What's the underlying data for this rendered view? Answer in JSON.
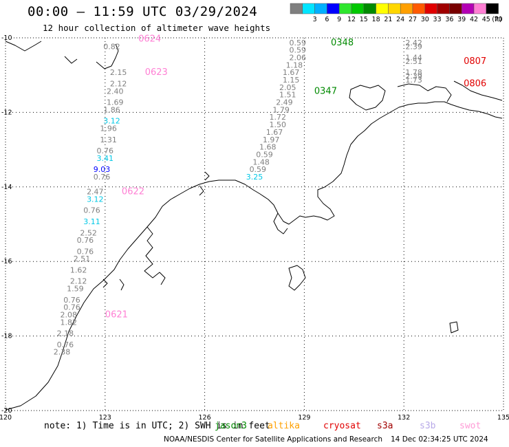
{
  "header": {
    "title": "00:00 – 11:59 UTC 03/29/2024",
    "subtitle": "12 hour collection of altimeter wave heights"
  },
  "legend": {
    "unit": "(ft)",
    "swatches": [
      {
        "label": "",
        "color": "#7f7f7f"
      },
      {
        "label": "3",
        "color": "#00e5ff"
      },
      {
        "label": "6",
        "color": "#00b0ff"
      },
      {
        "label": "9",
        "color": "#0000ff"
      },
      {
        "label": "12",
        "color": "#2ee62e"
      },
      {
        "label": "15",
        "color": "#00c800"
      },
      {
        "label": "18",
        "color": "#008a00"
      },
      {
        "label": "21",
        "color": "#ffff00"
      },
      {
        "label": "24",
        "color": "#ffd700"
      },
      {
        "label": "27",
        "color": "#ffa000"
      },
      {
        "label": "30",
        "color": "#ff5a00"
      },
      {
        "label": "33",
        "color": "#e10000"
      },
      {
        "label": "36",
        "color": "#a00000"
      },
      {
        "label": "39",
        "color": "#780000"
      },
      {
        "label": "42",
        "color": "#b400b4"
      },
      {
        "label": "45",
        "color": "#ff7fd4"
      },
      {
        "label": "70",
        "color": "#000000"
      }
    ]
  },
  "axes": {
    "lon_labels": [
      "120",
      "123",
      "126",
      "129",
      "132",
      "135"
    ],
    "lat_labels": [
      "-10",
      "-12",
      "-14",
      "-16",
      "-18",
      "-20"
    ]
  },
  "passes": [
    {
      "time": "0624",
      "color": "#ff7fd4",
      "lon": 124.0,
      "lat": -10.1
    },
    {
      "time": "0623",
      "color": "#ff7fd4",
      "lon": 124.2,
      "lat": -11.0
    },
    {
      "time": "0622",
      "color": "#ff7fd4",
      "lon": 123.5,
      "lat": -14.2
    },
    {
      "time": "0621",
      "color": "#ff7fd4",
      "lon": 123.0,
      "lat": -17.5
    },
    {
      "time": "0348",
      "color": "#008a00",
      "lon": 129.8,
      "lat": -10.2
    },
    {
      "time": "0347",
      "color": "#008a00",
      "lon": 129.3,
      "lat": -11.5
    },
    {
      "time": "0807",
      "color": "#e10000",
      "lon": 133.8,
      "lat": -10.7
    },
    {
      "time": "0806",
      "color": "#e10000",
      "lon": 133.8,
      "lat": -11.3
    }
  ],
  "observations": [
    {
      "value": "0.59",
      "color": "#7f7f7f",
      "lon": 128.8,
      "lat": -10.2
    },
    {
      "value": "0.59",
      "color": "#7f7f7f",
      "lon": 128.8,
      "lat": -10.4
    },
    {
      "value": "2.06",
      "color": "#7f7f7f",
      "lon": 128.8,
      "lat": -10.6
    },
    {
      "value": "1.18",
      "color": "#7f7f7f",
      "lon": 128.7,
      "lat": -10.8
    },
    {
      "value": "1.67",
      "color": "#7f7f7f",
      "lon": 128.6,
      "lat": -11.0
    },
    {
      "value": "1.15",
      "color": "#7f7f7f",
      "lon": 128.6,
      "lat": -11.2
    },
    {
      "value": "2.05",
      "color": "#7f7f7f",
      "lon": 128.5,
      "lat": -11.4
    },
    {
      "value": "1.51",
      "color": "#7f7f7f",
      "lon": 128.5,
      "lat": -11.6
    },
    {
      "value": "2.49",
      "color": "#7f7f7f",
      "lon": 128.4,
      "lat": -11.8
    },
    {
      "value": "1.79",
      "color": "#7f7f7f",
      "lon": 128.3,
      "lat": -12.0
    },
    {
      "value": "1.72",
      "color": "#7f7f7f",
      "lon": 128.2,
      "lat": -12.2
    },
    {
      "value": "1.50",
      "color": "#7f7f7f",
      "lon": 128.2,
      "lat": -12.4
    },
    {
      "value": "1.67",
      "color": "#7f7f7f",
      "lon": 128.1,
      "lat": -12.6
    },
    {
      "value": "1.97",
      "color": "#7f7f7f",
      "lon": 128.0,
      "lat": -12.8
    },
    {
      "value": "1.68",
      "color": "#7f7f7f",
      "lon": 127.9,
      "lat": -13.0
    },
    {
      "value": "0.59",
      "color": "#7f7f7f",
      "lon": 127.8,
      "lat": -13.2
    },
    {
      "value": "1.48",
      "color": "#7f7f7f",
      "lon": 127.7,
      "lat": -13.4
    },
    {
      "value": "0.59",
      "color": "#7f7f7f",
      "lon": 127.6,
      "lat": -13.6
    },
    {
      "value": "3.25",
      "color": "#00c8e6",
      "lon": 127.5,
      "lat": -13.8
    },
    {
      "value": "2.42",
      "color": "#7f7f7f",
      "lon": 132.3,
      "lat": -10.2
    },
    {
      "value": "2.39",
      "color": "#7f7f7f",
      "lon": 132.3,
      "lat": -10.3
    },
    {
      "value": "1.44",
      "color": "#7f7f7f",
      "lon": 132.3,
      "lat": -10.6
    },
    {
      "value": "2.51",
      "color": "#7f7f7f",
      "lon": 132.3,
      "lat": -10.7
    },
    {
      "value": "1.78",
      "color": "#7f7f7f",
      "lon": 132.3,
      "lat": -11.0
    },
    {
      "value": "2.39",
      "color": "#7f7f7f",
      "lon": 132.3,
      "lat": -11.1
    },
    {
      "value": "1.73",
      "color": "#7f7f7f",
      "lon": 132.3,
      "lat": -11.2
    },
    {
      "value": "0.82",
      "color": "#7f7f7f",
      "lon": 123.2,
      "lat": -10.3
    },
    {
      "value": "2.15",
      "color": "#7f7f7f",
      "lon": 123.4,
      "lat": -11.0
    },
    {
      "value": "2.12",
      "color": "#7f7f7f",
      "lon": 123.4,
      "lat": -11.3
    },
    {
      "value": "2.40",
      "color": "#7f7f7f",
      "lon": 123.3,
      "lat": -11.5
    },
    {
      "value": "1.69",
      "color": "#7f7f7f",
      "lon": 123.3,
      "lat": -11.8
    },
    {
      "value": "1.86",
      "color": "#7f7f7f",
      "lon": 123.2,
      "lat": -12.0
    },
    {
      "value": "3.12",
      "color": "#00c8e6",
      "lon": 123.2,
      "lat": -12.3
    },
    {
      "value": "1.96",
      "color": "#7f7f7f",
      "lon": 123.1,
      "lat": -12.5
    },
    {
      "value": "1.31",
      "color": "#7f7f7f",
      "lon": 123.1,
      "lat": -12.8
    },
    {
      "value": "0.76",
      "color": "#7f7f7f",
      "lon": 123.0,
      "lat": -13.1
    },
    {
      "value": "3.41",
      "color": "#00c8e6",
      "lon": 123.0,
      "lat": -13.3
    },
    {
      "value": "9.03",
      "color": "#0000ff",
      "lon": 122.9,
      "lat": -13.6
    },
    {
      "value": "0.76",
      "color": "#7f7f7f",
      "lon": 122.9,
      "lat": -13.8
    },
    {
      "value": "2.47",
      "color": "#7f7f7f",
      "lon": 122.7,
      "lat": -14.2
    },
    {
      "value": "3.12",
      "color": "#00c8e6",
      "lon": 122.7,
      "lat": -14.4
    },
    {
      "value": "0.76",
      "color": "#7f7f7f",
      "lon": 122.6,
      "lat": -14.7
    },
    {
      "value": "3.11",
      "color": "#00c8e6",
      "lon": 122.6,
      "lat": -15.0
    },
    {
      "value": "2.52",
      "color": "#7f7f7f",
      "lon": 122.5,
      "lat": -15.3
    },
    {
      "value": "0.76",
      "color": "#7f7f7f",
      "lon": 122.4,
      "lat": -15.5
    },
    {
      "value": "0.76",
      "color": "#7f7f7f",
      "lon": 122.4,
      "lat": -15.8
    },
    {
      "value": "2.51",
      "color": "#7f7f7f",
      "lon": 122.3,
      "lat": -16.0
    },
    {
      "value": "1.62",
      "color": "#7f7f7f",
      "lon": 122.2,
      "lat": -16.3
    },
    {
      "value": "2.12",
      "color": "#7f7f7f",
      "lon": 122.2,
      "lat": -16.6
    },
    {
      "value": "1.59",
      "color": "#7f7f7f",
      "lon": 122.1,
      "lat": -16.8
    },
    {
      "value": "0.76",
      "color": "#7f7f7f",
      "lon": 122.0,
      "lat": -17.1
    },
    {
      "value": "0.76",
      "color": "#7f7f7f",
      "lon": 122.0,
      "lat": -17.3
    },
    {
      "value": "2.08",
      "color": "#7f7f7f",
      "lon": 121.9,
      "lat": -17.5
    },
    {
      "value": "1.82",
      "color": "#7f7f7f",
      "lon": 121.9,
      "lat": -17.7
    },
    {
      "value": "2.18",
      "color": "#7f7f7f",
      "lon": 121.8,
      "lat": -18.0
    },
    {
      "value": "0.76",
      "color": "#7f7f7f",
      "lon": 121.8,
      "lat": -18.3
    },
    {
      "value": "2.38",
      "color": "#7f7f7f",
      "lon": 121.7,
      "lat": -18.5
    }
  ],
  "note": {
    "prefix": "note: 1) Time is in UTC; 2) SWH is in feet",
    "satellites": [
      {
        "name": "jason3",
        "color": "#008a00"
      },
      {
        "name": "altika",
        "color": "#ffa000"
      },
      {
        "name": "cryosat",
        "color": "#e10000"
      },
      {
        "name": "s3a",
        "color": "#a00000"
      },
      {
        "name": "s3b",
        "color": "#b7a8e8"
      },
      {
        "name": "swot",
        "color": "#ff9ad6"
      }
    ]
  },
  "footer": {
    "credit": "NOAA/NESDIS Center for Satellite Applications and Research",
    "timestamp": "14 Dec 02:34:25 UTC 2024"
  }
}
